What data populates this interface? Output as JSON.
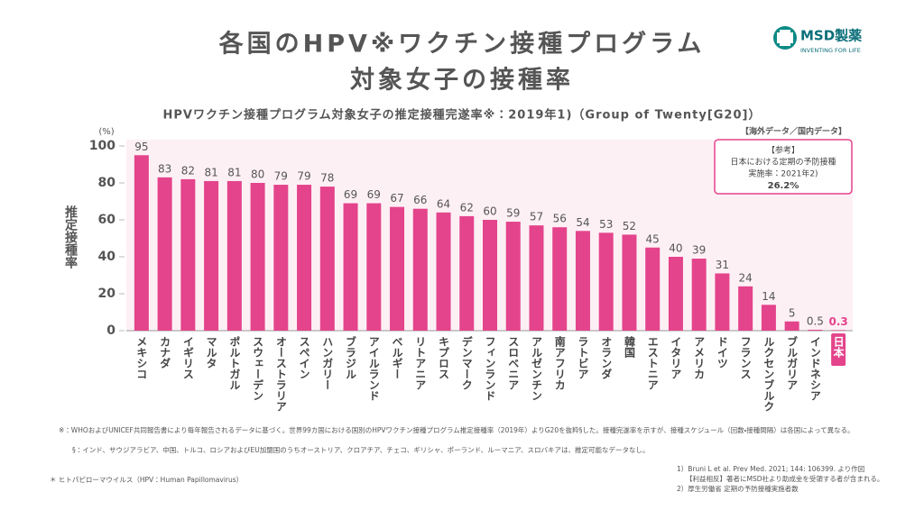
{
  "logo": {
    "name": "MSD製薬",
    "tagline": "INVENTING FOR LIFE"
  },
  "chart_data": {
    "type": "bar",
    "title": [
      "各国のHPV※ワクチン接種プログラム",
      "対象女子の接種率"
    ],
    "subtitle": "HPVワクチン接種プログラム対象女子の推定接種完遂率※：2019年1)（Group of Twenty[G20]）",
    "y_label": "推定接種率",
    "y_unit": "(%)",
    "data_note": "【海外データ／国内データ】",
    "categories": [
      "メキシコ",
      "カナダ",
      "イギリス",
      "マルタ",
      "ポルトガル",
      "スウェーデン",
      "オーストラリア",
      "スペイン",
      "ハンガリー",
      "ブラジル",
      "アイルランド",
      "ベルギー",
      "リトアニア",
      "キプロス",
      "デンマーク",
      "フィンランド",
      "スロベニア",
      "アルゼンチン",
      "南アフリカ",
      "ラトビア",
      "オランダ",
      "韓国",
      "エストニア",
      "イタリア",
      "アメリカ",
      "ドイツ",
      "フランス",
      "ルクセンブルク",
      "ブルガリア",
      "インドネシア",
      "日本"
    ],
    "values": [
      95,
      83,
      82,
      81,
      81,
      80,
      79,
      79,
      78,
      69,
      69,
      67,
      66,
      64,
      62,
      60,
      59,
      57,
      56,
      54,
      53,
      52,
      45,
      40,
      39,
      31,
      24,
      14,
      5,
      0.5,
      0.3
    ],
    "color": "#e4448c",
    "label_colors": [
      "#444",
      "#444",
      "#444",
      "#444",
      "#444",
      "#444",
      "#444",
      "#444",
      "#444",
      "#444",
      "#444",
      "#444",
      "#444",
      "#444",
      "#444",
      "#444",
      "#444",
      "#444",
      "#444",
      "#444",
      "#444",
      "#444",
      "#444",
      "#444",
      "#444",
      "#444",
      "#444",
      "#444",
      "#444",
      "#444",
      "#e4448c"
    ],
    "ylim": [
      0,
      100
    ],
    "yticks": [
      0,
      20,
      40,
      60,
      80,
      100
    ],
    "reference_box": [
      "【参考】",
      "日本における定期の予防接種",
      "実施率：2021年2)",
      "26.2%"
    ]
  },
  "footnotes": [
    "※：WHOおよびUNICEF共同報告書により毎年報告されるデータに基づく。世界99カ国における国別のHPVワクチン接種プログラム推定接種率（2019年）よりG20を抜粋§した。接種完遂率を示すが、接種スケジュール（回数・接種間隔）は各国によって異なる。",
    "§：インド、サウジアラビア、中国、トルコ、ロシアおよびEU加盟国のうちオーストリア、クロアチア、チェコ、ギリシャ、ポーランド、ルーマニア、スロバキアは、推定可能なデータなし。",
    "＊ ヒトパピローマウイルス（HPV：Human Papillomavirus）"
  ],
  "references": [
    "1）Bruni L et al. Prev Med. 2021; 144: 106399. より作図",
    "【利益相反】著者にMSD社より助成金を受領する者が含まれる。",
    "2）厚生労働省 定期の予防接種実施者数"
  ]
}
